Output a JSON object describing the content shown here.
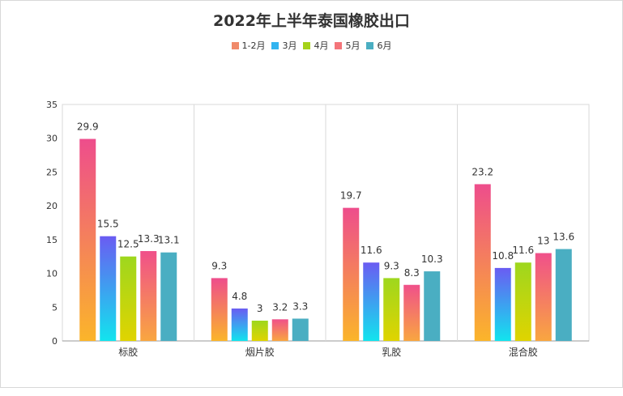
{
  "chart_data": {
    "type": "bar",
    "title": "2022年上半年泰国橡胶出口",
    "categories": [
      "标胶",
      "烟片胶",
      "乳胶",
      "混合胶"
    ],
    "series": [
      {
        "name": "1-2月",
        "values": [
          29.9,
          9.3,
          19.7,
          23.2
        ],
        "color_top": "#ee4d8c",
        "color_bottom": "#fbb52a"
      },
      {
        "name": "3月",
        "values": [
          15.5,
          4.8,
          11.6,
          10.8
        ],
        "color_top": "#6a5cf2",
        "color_bottom": "#12e4ee"
      },
      {
        "name": "4月",
        "values": [
          12.5,
          3,
          9.3,
          11.6
        ],
        "color_top": "#9ed71e",
        "color_bottom": "#e0d400"
      },
      {
        "name": "5月",
        "values": [
          13.3,
          3.2,
          8.3,
          13
        ],
        "color_top": "#f0508a",
        "color_bottom": "#f9a640"
      },
      {
        "name": "6月",
        "values": [
          13.1,
          3.3,
          10.3,
          13.6
        ],
        "color_top": "#4aaec2",
        "color_bottom": "#4aaec2"
      }
    ],
    "legend_colors": [
      "#f08a6a",
      "#32b4f0",
      "#a5d21a",
      "#f4757a",
      "#4aaec2"
    ],
    "ylim": [
      0,
      35
    ],
    "yticks": [
      0,
      5,
      10,
      15,
      20,
      25,
      30,
      35
    ],
    "grid": "vertical category separators",
    "legend_position": "top-center"
  }
}
